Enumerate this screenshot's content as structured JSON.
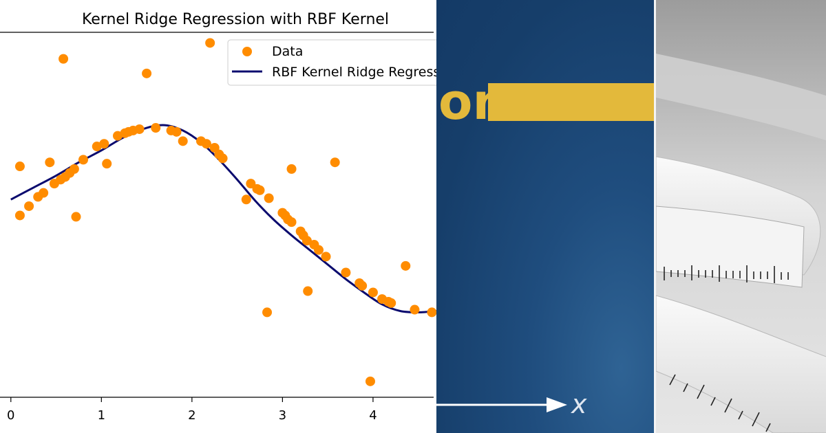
{
  "chart_data": {
    "type": "scatter",
    "title": "Kernel Ridge Regression with RBF Kernel",
    "xlabel": "",
    "ylabel": "",
    "xlim": [
      -0.12,
      4.7
    ],
    "ylim": [
      -1.55,
      1.2
    ],
    "x_ticks": [
      0,
      1,
      2,
      3,
      4
    ],
    "x_tick_labels": [
      "0",
      "1",
      "2",
      "3",
      "4"
    ],
    "legend": {
      "position": "top-right",
      "entries": [
        "Data",
        "RBF Kernel Ridge Regression"
      ]
    },
    "series": [
      {
        "name": "Data",
        "kind": "scatter",
        "color": "#ff8c00",
        "x": [
          0.1,
          0.1,
          0.2,
          0.3,
          0.36,
          0.43,
          0.48,
          0.55,
          0.58,
          0.6,
          0.65,
          0.7,
          0.72,
          0.8,
          0.95,
          1.03,
          1.06,
          1.18,
          1.26,
          1.3,
          1.35,
          1.42,
          1.5,
          1.6,
          1.77,
          1.83,
          1.9,
          2.1,
          2.16,
          2.2,
          2.25,
          2.3,
          2.34,
          2.6,
          2.65,
          2.72,
          2.75,
          2.83,
          2.85,
          3.0,
          3.03,
          3.06,
          3.1,
          3.1,
          3.2,
          3.23,
          3.27,
          3.28,
          3.35,
          3.4,
          3.48,
          3.58,
          3.7,
          3.85,
          3.88,
          3.97,
          4.0,
          4.1,
          4.17,
          4.2,
          4.36,
          4.46,
          4.65
        ],
        "y": [
          0.19,
          -0.18,
          -0.11,
          -0.04,
          -0.01,
          0.22,
          0.06,
          0.09,
          1.0,
          0.11,
          0.14,
          0.17,
          -0.19,
          0.24,
          0.34,
          0.36,
          0.21,
          0.42,
          0.44,
          0.45,
          0.46,
          0.47,
          0.89,
          0.48,
          0.46,
          0.45,
          0.38,
          0.38,
          0.36,
          1.12,
          0.33,
          0.28,
          0.25,
          -0.06,
          0.06,
          0.02,
          0.01,
          -0.91,
          -0.05,
          -0.16,
          -0.18,
          -0.21,
          -0.23,
          0.17,
          -0.3,
          -0.33,
          -0.37,
          -0.75,
          -0.4,
          -0.44,
          -0.49,
          0.22,
          -0.61,
          -0.69,
          -0.71,
          -1.43,
          -0.76,
          -0.81,
          -0.83,
          -0.84,
          -0.56,
          -0.89,
          -0.91
        ]
      },
      {
        "name": "RBF Kernel Ridge Regression",
        "kind": "line",
        "color": "#0a0a6e",
        "x": [
          0.0,
          0.25,
          0.5,
          0.75,
          1.0,
          1.25,
          1.5,
          1.7,
          1.9,
          2.1,
          2.3,
          2.5,
          2.7,
          2.9,
          3.1,
          3.3,
          3.5,
          3.7,
          3.9,
          4.1,
          4.3,
          4.5,
          4.7
        ],
        "y": [
          -0.06,
          0.03,
          0.12,
          0.22,
          0.31,
          0.41,
          0.48,
          0.5,
          0.46,
          0.37,
          0.24,
          0.09,
          -0.07,
          -0.21,
          -0.33,
          -0.44,
          -0.55,
          -0.66,
          -0.76,
          -0.85,
          -0.9,
          -0.91,
          -0.9
        ]
      }
    ]
  },
  "overlay": {
    "middle_text": "on",
    "axis_label": "x",
    "accent_color": "#e3b93b",
    "panel_color": "#1b4473"
  }
}
